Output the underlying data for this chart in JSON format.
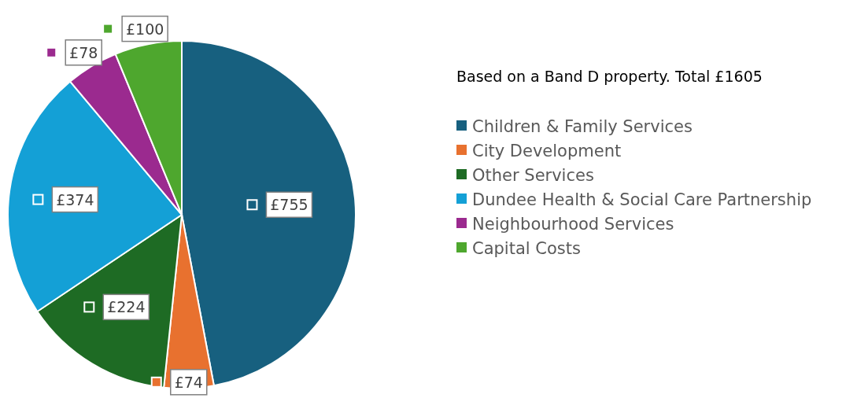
{
  "chart_data": {
    "type": "pie",
    "title": "Based on a Band D property. Total £1605",
    "categories": [
      "Children & Family Services",
      "City Development",
      "Other Services",
      "Dundee Health & Social Care Partnership",
      "Neighbourhood Services",
      "Capital Costs"
    ],
    "values": [
      755,
      74,
      224,
      374,
      78,
      100
    ],
    "value_labels": [
      "£755",
      "£74",
      "£224",
      "£374",
      "£78",
      "£100"
    ],
    "colors": [
      "#17607f",
      "#e8712f",
      "#1e6b24",
      "#14a0d6",
      "#9b2a8f",
      "#4ea72e"
    ],
    "legend": "right"
  }
}
